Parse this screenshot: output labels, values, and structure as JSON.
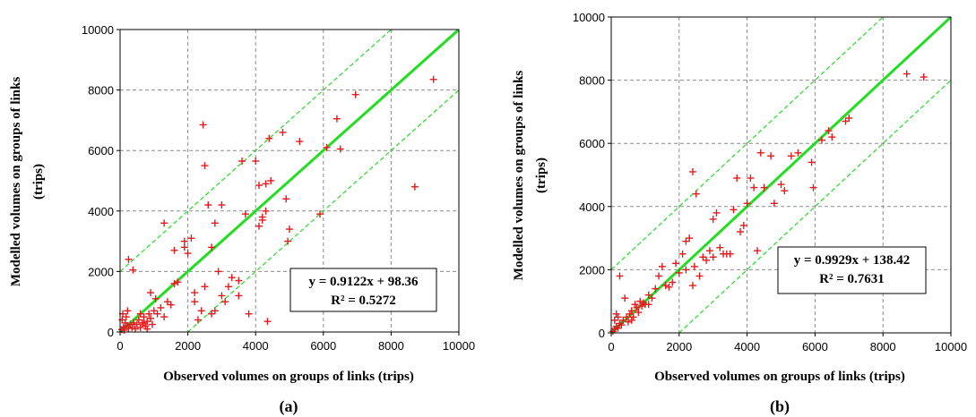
{
  "chart_data": [
    {
      "type": "scatter",
      "panel_label": "(a)",
      "xlabel": "Observed volumes on groups of links (trips)",
      "ylabel": [
        "Modelled volumes on groups of links",
        "(trips)"
      ],
      "xlim": [
        0,
        10000
      ],
      "ylim": [
        0,
        10000
      ],
      "xticks": [
        "0",
        "2000",
        "4000",
        "6000",
        "8000",
        "10000"
      ],
      "yticks": [
        "0",
        "2000",
        "4000",
        "6000",
        "8000",
        "10000"
      ],
      "grid": true,
      "equation": "y = 0.9122x + 98.36",
      "r_squared": "R² = 0.5272",
      "reference_lines": {
        "identity": [
          [
            0,
            0
          ],
          [
            10000,
            10000
          ]
        ],
        "upper": [
          [
            0,
            2000
          ],
          [
            8000,
            10000
          ]
        ],
        "lower": [
          [
            2000,
            0
          ],
          [
            10000,
            8000
          ]
        ]
      },
      "marker_color": "#e41a1c",
      "line_color": "#22dd22",
      "points": [
        [
          50,
          80
        ],
        [
          100,
          150
        ],
        [
          120,
          60
        ],
        [
          150,
          300
        ],
        [
          200,
          200
        ],
        [
          250,
          120
        ],
        [
          300,
          250
        ],
        [
          60,
          400
        ],
        [
          80,
          600
        ],
        [
          180,
          500
        ],
        [
          220,
          700
        ],
        [
          350,
          150
        ],
        [
          400,
          300
        ],
        [
          450,
          100
        ],
        [
          500,
          250
        ],
        [
          550,
          400
        ],
        [
          600,
          150
        ],
        [
          650,
          300
        ],
        [
          700,
          500
        ],
        [
          750,
          200
        ],
        [
          800,
          350
        ],
        [
          850,
          600
        ],
        [
          900,
          450
        ],
        [
          950,
          250
        ],
        [
          1000,
          700
        ],
        [
          1050,
          1100
        ],
        [
          900,
          1300
        ],
        [
          1100,
          600
        ],
        [
          1200,
          800
        ],
        [
          1300,
          500
        ],
        [
          1400,
          1000
        ],
        [
          1500,
          900
        ],
        [
          1600,
          1600
        ],
        [
          1700,
          1650
        ],
        [
          1300,
          3600
        ],
        [
          1600,
          2700
        ],
        [
          1900,
          2800
        ],
        [
          1900,
          3000
        ],
        [
          2000,
          2600
        ],
        [
          2100,
          3100
        ],
        [
          2200,
          1000
        ],
        [
          2200,
          1300
        ],
        [
          2300,
          400
        ],
        [
          2400,
          700
        ],
        [
          2500,
          1500
        ],
        [
          2450,
          6850
        ],
        [
          2500,
          5500
        ],
        [
          2600,
          4200
        ],
        [
          2700,
          2800
        ],
        [
          2700,
          600
        ],
        [
          2800,
          700
        ],
        [
          2800,
          3600
        ],
        [
          2900,
          2000
        ],
        [
          3000,
          4200
        ],
        [
          3000,
          1200
        ],
        [
          3100,
          1000
        ],
        [
          3200,
          1500
        ],
        [
          3300,
          1800
        ],
        [
          3500,
          1700
        ],
        [
          3500,
          1200
        ],
        [
          3600,
          5650
        ],
        [
          3700,
          3900
        ],
        [
          3800,
          600
        ],
        [
          4000,
          5650
        ],
        [
          4100,
          3500
        ],
        [
          4100,
          4850
        ],
        [
          4200,
          3800
        ],
        [
          4200,
          3700
        ],
        [
          4300,
          4000
        ],
        [
          4350,
          350
        ],
        [
          4300,
          4900
        ],
        [
          4400,
          6400
        ],
        [
          4450,
          5000
        ],
        [
          4800,
          6600
        ],
        [
          4900,
          4400
        ],
        [
          5000,
          3400
        ],
        [
          4950,
          3000
        ],
        [
          5300,
          6300
        ],
        [
          5900,
          3900
        ],
        [
          6100,
          6100
        ],
        [
          6400,
          7050
        ],
        [
          6500,
          6050
        ],
        [
          6950,
          7850
        ],
        [
          8700,
          4800
        ],
        [
          9250,
          8350
        ],
        [
          250,
          2400
        ],
        [
          380,
          2050
        ],
        [
          600,
          600
        ],
        [
          700,
          300
        ],
        [
          800,
          100
        ]
      ]
    },
    {
      "type": "scatter",
      "panel_label": "(b)",
      "xlabel": "Observed volumes on groups of links (trips)",
      "ylabel": [
        "Modelled volumes on groups of links",
        "(trips)"
      ],
      "xlim": [
        0,
        10000
      ],
      "ylim": [
        0,
        10000
      ],
      "xticks": [
        "0",
        "2000",
        "4000",
        "6000",
        "8000",
        "10000"
      ],
      "yticks": [
        "0",
        "2000",
        "4000",
        "6000",
        "8000",
        "10000"
      ],
      "grid": true,
      "equation": "y = 0.9929x + 138.42",
      "r_squared": "R² = 0.7631",
      "reference_lines": {
        "identity": [
          [
            0,
            0
          ],
          [
            10000,
            10000
          ]
        ],
        "upper": [
          [
            0,
            2000
          ],
          [
            8000,
            10000
          ]
        ],
        "lower": [
          [
            2000,
            0
          ],
          [
            10000,
            8000
          ]
        ]
      },
      "marker_color": "#e41a1c",
      "line_color": "#22dd22",
      "points": [
        [
          50,
          50
        ],
        [
          100,
          120
        ],
        [
          150,
          200
        ],
        [
          200,
          150
        ],
        [
          250,
          300
        ],
        [
          300,
          250
        ],
        [
          350,
          400
        ],
        [
          100,
          400
        ],
        [
          150,
          600
        ],
        [
          200,
          500
        ],
        [
          250,
          1800
        ],
        [
          400,
          1100
        ],
        [
          450,
          500
        ],
        [
          500,
          350
        ],
        [
          550,
          600
        ],
        [
          600,
          700
        ],
        [
          650,
          500
        ],
        [
          700,
          900
        ],
        [
          750,
          800
        ],
        [
          800,
          650
        ],
        [
          850,
          1000
        ],
        [
          900,
          850
        ],
        [
          950,
          950
        ],
        [
          1000,
          900
        ],
        [
          1100,
          1200
        ],
        [
          1200,
          1100
        ],
        [
          1300,
          1400
        ],
        [
          1400,
          1800
        ],
        [
          1500,
          2100
        ],
        [
          1600,
          1500
        ],
        [
          1700,
          1450
        ],
        [
          1800,
          1600
        ],
        [
          1900,
          2200
        ],
        [
          2000,
          1900
        ],
        [
          2100,
          2500
        ],
        [
          2200,
          2900
        ],
        [
          2300,
          3000
        ],
        [
          2400,
          1500
        ],
        [
          2400,
          5100
        ],
        [
          2450,
          2100
        ],
        [
          2500,
          4400
        ],
        [
          2600,
          1800
        ],
        [
          2700,
          2400
        ],
        [
          2800,
          2300
        ],
        [
          2900,
          2600
        ],
        [
          3000,
          3600
        ],
        [
          3100,
          3800
        ],
        [
          3200,
          2700
        ],
        [
          3300,
          2500
        ],
        [
          3400,
          2500
        ],
        [
          3500,
          2500
        ],
        [
          3600,
          3900
        ],
        [
          3700,
          4900
        ],
        [
          3800,
          3200
        ],
        [
          3900,
          3400
        ],
        [
          4000,
          4100
        ],
        [
          4100,
          4900
        ],
        [
          4200,
          4600
        ],
        [
          4300,
          2600
        ],
        [
          4400,
          5700
        ],
        [
          4500,
          4600
        ],
        [
          4700,
          5600
        ],
        [
          4800,
          4100
        ],
        [
          5000,
          4700
        ],
        [
          5100,
          4500
        ],
        [
          5300,
          5600
        ],
        [
          5500,
          5700
        ],
        [
          5900,
          5400
        ],
        [
          5950,
          4600
        ],
        [
          6200,
          6100
        ],
        [
          6400,
          6400
        ],
        [
          6500,
          6200
        ],
        [
          6900,
          6700
        ],
        [
          7000,
          6800
        ],
        [
          8700,
          8200
        ],
        [
          9200,
          8100
        ],
        [
          3000,
          2400
        ],
        [
          2200,
          2000
        ],
        [
          1100,
          900
        ],
        [
          600,
          400
        ]
      ]
    }
  ]
}
